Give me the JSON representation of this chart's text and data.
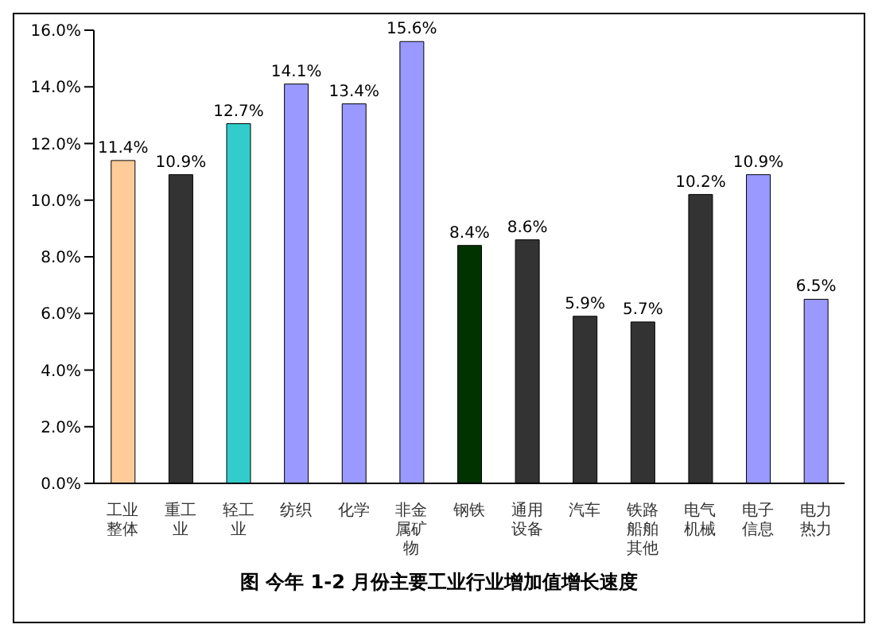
{
  "chart_data": {
    "type": "bar",
    "title": "图  今年 1-2 月份主要工业行业增加值增长速度",
    "categories": [
      "工业整体",
      "重工业",
      "轻工业",
      "纺织",
      "化学",
      "非金属矿物",
      "钢铁",
      "通用设备",
      "汽车",
      "铁路船舶其他",
      "电气机械",
      "电子信息",
      "电力热力"
    ],
    "values": [
      11.4,
      10.9,
      12.7,
      14.1,
      13.4,
      15.6,
      8.4,
      8.6,
      5.9,
      5.7,
      10.2,
      10.9,
      6.5
    ],
    "colors": [
      "#ffcc99",
      "#333333",
      "#33cccc",
      "#9999ff",
      "#9999ff",
      "#9999ff",
      "#003300",
      "#333333",
      "#333333",
      "#333333",
      "#333333",
      "#9999ff",
      "#9999ff"
    ],
    "value_labels": [
      "11.4%",
      "10.9%",
      "12.7%",
      "14.1%",
      "13.4%",
      "15.6%",
      "8.4%",
      "8.6%",
      "5.9%",
      "5.7%",
      "10.2%",
      "10.9%",
      "6.5%"
    ],
    "ylim": [
      0,
      16
    ],
    "yticks": [
      {
        "value": 0,
        "label": "0.0%"
      },
      {
        "value": 2,
        "label": "2.0%"
      },
      {
        "value": 4,
        "label": "4.0%"
      },
      {
        "value": 6,
        "label": "6.0%"
      },
      {
        "value": 8,
        "label": "8.0%"
      },
      {
        "value": 10,
        "label": "10.0%"
      },
      {
        "value": 12,
        "label": "12.0%"
      },
      {
        "value": 14,
        "label": "14.0%"
      },
      {
        "value": 16,
        "label": "16.0%"
      }
    ],
    "grid": false,
    "legend": false
  }
}
